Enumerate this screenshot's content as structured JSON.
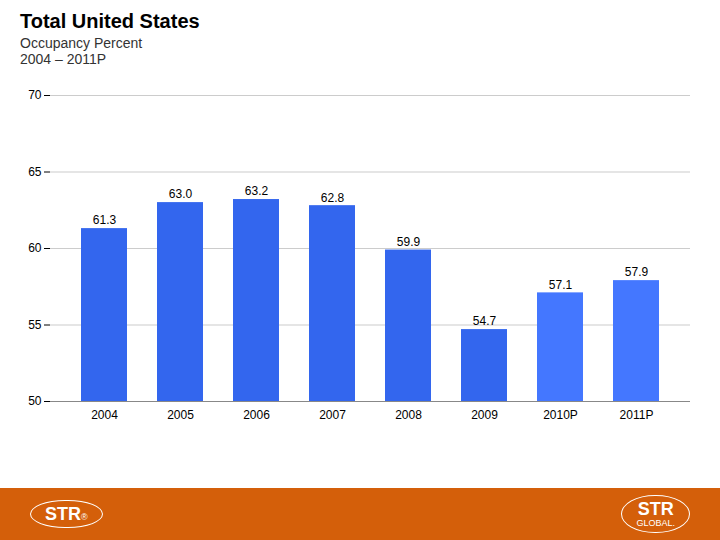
{
  "chart_data": {
    "type": "bar",
    "title": "Total United States",
    "subtitle": [
      "Occupancy Percent",
      "2004 – 2011P"
    ],
    "categories": [
      "2004",
      "2005",
      "2006",
      "2007",
      "2008",
      "2009",
      "2010P",
      "2011P"
    ],
    "values": [
      61.3,
      63.0,
      63.2,
      62.8,
      59.9,
      54.7,
      57.1,
      57.9
    ],
    "value_labels": [
      "61.3",
      "63.0",
      "63.2",
      "62.8",
      "59.9",
      "54.7",
      "57.1",
      "57.9"
    ],
    "data_labels": true,
    "colors": [
      "#3366ee",
      "#3366ee",
      "#3366ee",
      "#3366ee",
      "#3366ee",
      "#3366ee",
      "#4477ff",
      "#4477ff"
    ],
    "ylim": [
      50,
      70
    ],
    "yticks": [
      50,
      55,
      60,
      65,
      70
    ],
    "grid": true,
    "annotations": [
      "STR",
      "®",
      "STR",
      "GLOBAL."
    ]
  }
}
